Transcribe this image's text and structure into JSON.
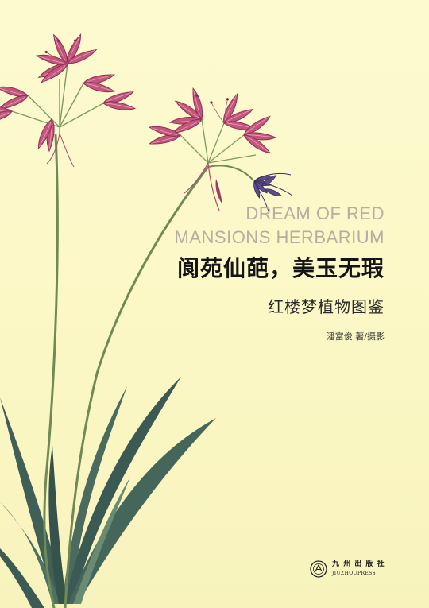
{
  "cover": {
    "title_en": [
      "DREAM OF RED",
      "MANSIONS HERBARIUM"
    ],
    "title_zh": "阆苑仙葩，美玉无瑕",
    "subtitle_zh": "红楼梦植物图鉴",
    "author": "潘富俊 著/摄影",
    "publisher_zh": "九 州 出 版 社",
    "publisher_en": "JIUZHOUPRESS"
  },
  "colors": {
    "background": "#fbf8c6",
    "petal": "#c4567c",
    "petal_dark": "#8d2f55",
    "stem": "#6f8a55",
    "leaf": "#3f5f57",
    "bud": "#5b4d86",
    "title_en": "#b5aea1",
    "title_zh": "#141414"
  },
  "icons": [
    "nerine-flower-illustration",
    "publisher-logo-icon"
  ]
}
